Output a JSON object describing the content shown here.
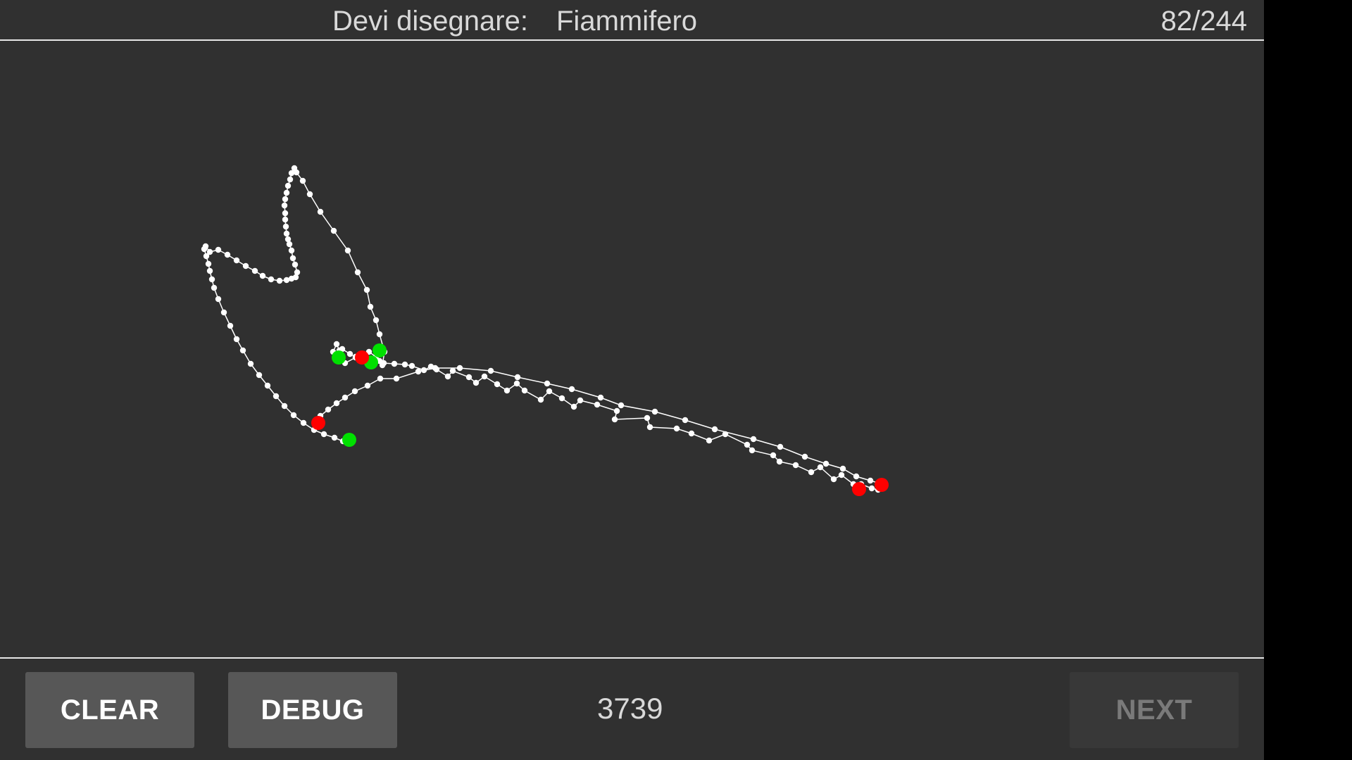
{
  "header": {
    "prompt_label": "Devi disegnare:",
    "prompt_word": "Fiammifero",
    "progress": "82/244"
  },
  "footer": {
    "clear_label": "CLEAR",
    "debug_label": "DEBUG",
    "score": "3739",
    "next_label": "NEXT"
  },
  "colors": {
    "background": "#303030",
    "stroke": "#ffffff",
    "stroke_start": "#00e000",
    "stroke_end": "#ff0000"
  }
}
